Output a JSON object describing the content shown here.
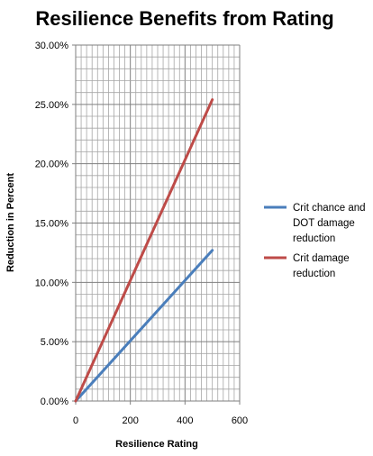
{
  "chart_data": {
    "type": "line",
    "title": "Resilience Benefits from Rating",
    "xlabel": "Resilience Rating",
    "ylabel": "Reduction in Percent",
    "xlim": [
      0,
      600
    ],
    "ylim": [
      0,
      0.3
    ],
    "x_ticks": [
      0,
      200,
      400,
      600
    ],
    "x_tick_labels": [
      "0",
      "200",
      "400",
      "600"
    ],
    "y_ticks": [
      0,
      0.05,
      0.1,
      0.15,
      0.2,
      0.25,
      0.3
    ],
    "y_tick_labels": [
      "0.00%",
      "5.00%",
      "10.00%",
      "15.00%",
      "20.00%",
      "25.00%",
      "30.00%"
    ],
    "grid": true,
    "minor_grid": true,
    "legend_position": "right",
    "series": [
      {
        "name": "Crit chance and DOT damage reduction",
        "legend_lines": [
          "Crit chance and",
          "DOT damage",
          "reduction"
        ],
        "color": "#4a7ebb",
        "x": [
          0,
          500
        ],
        "y": [
          0,
          0.127
        ]
      },
      {
        "name": "Crit damage reduction",
        "legend_lines": [
          "Crit damage",
          "reduction"
        ],
        "color": "#be4b48",
        "x": [
          0,
          500
        ],
        "y": [
          0,
          0.254
        ]
      }
    ]
  }
}
